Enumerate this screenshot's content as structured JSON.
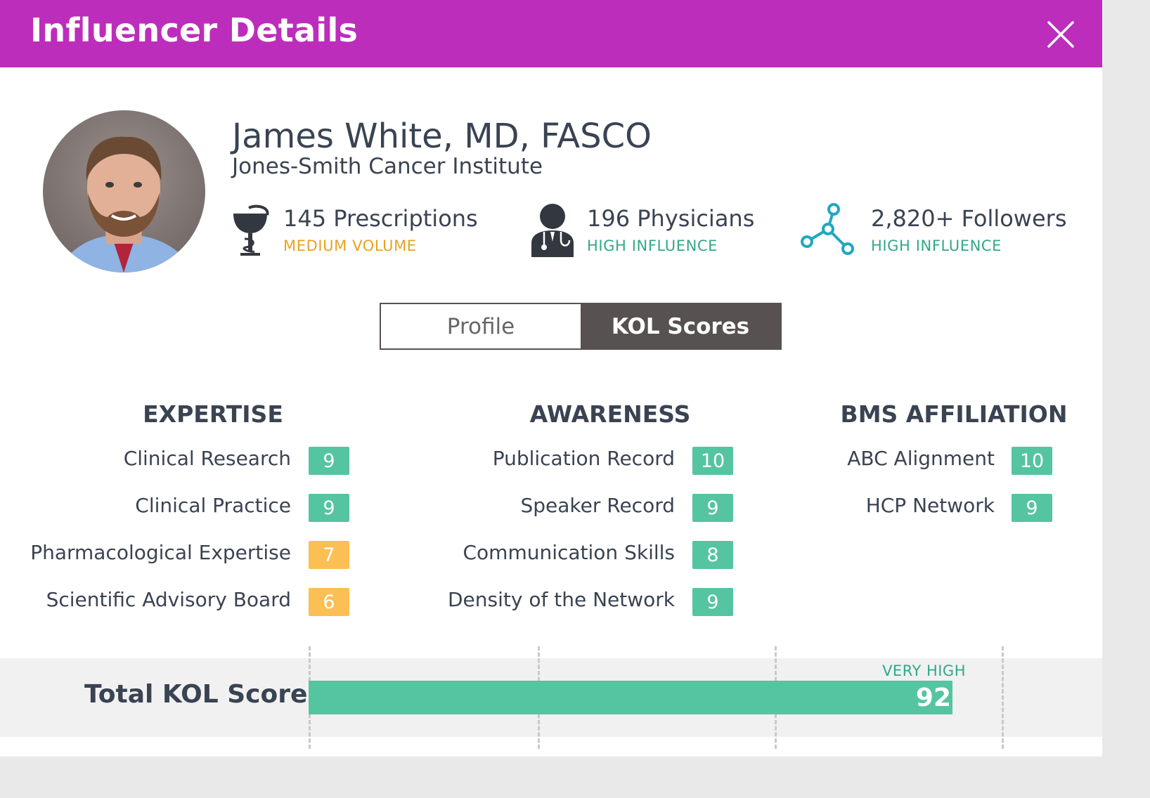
{
  "header": {
    "title": "Influencer Details"
  },
  "profile": {
    "name": "James White, MD, FASCO",
    "institution": "Jones-Smith Cancer Institute"
  },
  "stats": [
    {
      "value": "145 Prescriptions",
      "level": "MEDIUM VOLUME",
      "icon": "pharmacy-bowl-icon",
      "level_color": "#e8a224"
    },
    {
      "value": "196 Physicians",
      "level": "HIGH INFLUENCE",
      "icon": "physician-icon",
      "level_color": "#33a78a"
    },
    {
      "value": "2,820+ Followers",
      "level": "HIGH INFLUENCE",
      "icon": "network-icon",
      "level_color": "#33a78a"
    }
  ],
  "tabs": {
    "profile": "Profile",
    "kol": "KOL Scores"
  },
  "categories": [
    {
      "title": "EXPERTISE",
      "items": [
        {
          "label": "Clinical Research",
          "score": "9",
          "color": "#55c4a0"
        },
        {
          "label": "Clinical Practice",
          "score": "9",
          "color": "#55c4a0"
        },
        {
          "label": "Pharmacological Expertise",
          "score": "7",
          "color": "#fbbf54"
        },
        {
          "label": "Scientific Advisory Board",
          "score": "6",
          "color": "#fbbf54"
        }
      ]
    },
    {
      "title": "AWARENESS",
      "items": [
        {
          "label": "Publication Record",
          "score": "10",
          "color": "#55c4a0"
        },
        {
          "label": "Speaker Record",
          "score": "9",
          "color": "#55c4a0"
        },
        {
          "label": "Communication Skills",
          "score": "8",
          "color": "#55c4a0"
        },
        {
          "label": "Density of the Network",
          "score": "9",
          "color": "#55c4a0"
        }
      ]
    },
    {
      "title": "BMS AFFILIATION",
      "items": [
        {
          "label": "ABC Alignment",
          "score": "10",
          "color": "#55c4a0"
        },
        {
          "label": "HCP Network",
          "score": "9",
          "color": "#55c4a0"
        }
      ]
    }
  ],
  "total": {
    "label": "Total KOL Score",
    "score": "92",
    "fraction": 0.92,
    "level": "VERY HIGH",
    "bar_color": "#55c4a0"
  },
  "colors": {
    "header": "#bd2dbc",
    "green": "#55c4a0",
    "yellow": "#fbbf54",
    "tab_active": "#575152"
  }
}
